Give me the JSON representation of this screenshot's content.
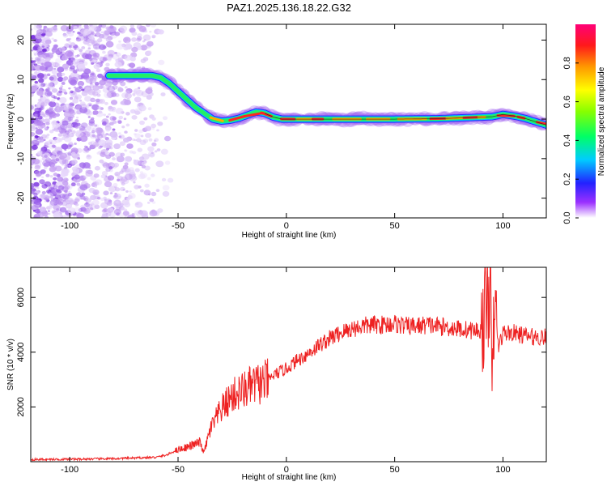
{
  "title": "PAZ1.2025.136.18.22.G32",
  "colors": {
    "snr_line": "#ee2222",
    "ridge_line": "#222222",
    "noise": "#9a55ee"
  },
  "chart_data": [
    {
      "type": "heatmap",
      "xlabel": "Height of straight line (km)",
      "ylabel": "Frequency (Hz)",
      "xlim": [
        -118,
        120
      ],
      "ylim": [
        -25,
        24
      ],
      "xticks": [
        -100,
        -50,
        0,
        50,
        100
      ],
      "yticks": [
        -20,
        -10,
        0,
        10,
        20
      ],
      "ridge": {
        "x": [
          -82,
          -70,
          -62,
          -58,
          -54,
          -50,
          -46,
          -42,
          -38,
          -34,
          -30,
          -26,
          -22,
          -18,
          -14,
          -10,
          -6,
          -2,
          5,
          20,
          30,
          50,
          70,
          95,
          100,
          105,
          110,
          120
        ],
        "y": [
          11,
          11,
          11,
          10.5,
          9,
          7,
          5,
          3,
          1.5,
          0,
          -0.5,
          -0.3,
          0.2,
          1,
          1.8,
          1.5,
          0.5,
          0,
          0,
          0,
          0,
          0,
          0.1,
          0.6,
          1.2,
          0.8,
          0.2,
          -1.5
        ]
      },
      "noise_region": [
        -118,
        -52
      ],
      "colorbar": {
        "label": "Normalized spectral amplitude",
        "ticks": [
          0.0,
          0.2,
          0.4,
          0.6,
          0.8
        ],
        "range": [
          0,
          1
        ]
      }
    },
    {
      "type": "line",
      "xlabel": "Height of straight line (km)",
      "ylabel": "SNR (10 * v/v)",
      "xlim": [
        -118,
        120
      ],
      "ylim": [
        0,
        7100
      ],
      "xticks": [
        -100,
        -50,
        0,
        50,
        100
      ],
      "yticks": [
        2000,
        4000,
        6000
      ],
      "series": [
        {
          "x": [
            -118,
            -100,
            -80,
            -60,
            -55,
            -50,
            -45,
            -40,
            -38,
            -35,
            -30,
            -25,
            -20,
            -15,
            -10,
            -5,
            0,
            5,
            10,
            15,
            20,
            25,
            30,
            35,
            40,
            45,
            50,
            55,
            60,
            65,
            70,
            75,
            80,
            85,
            90,
            92,
            94,
            95,
            96,
            98,
            100,
            105,
            110,
            115,
            120
          ],
          "y": [
            80,
            90,
            110,
            160,
            250,
            450,
            550,
            700,
            350,
            1200,
            1900,
            2400,
            2600,
            2800,
            2900,
            3200,
            3400,
            3700,
            3950,
            4250,
            4500,
            4700,
            4850,
            4950,
            5000,
            5000,
            5050,
            4950,
            4950,
            5000,
            4950,
            4900,
            4850,
            4800,
            4800,
            5400,
            7000,
            2600,
            5800,
            4200,
            4700,
            4700,
            4600,
            4550,
            4550
          ]
        }
      ]
    }
  ]
}
